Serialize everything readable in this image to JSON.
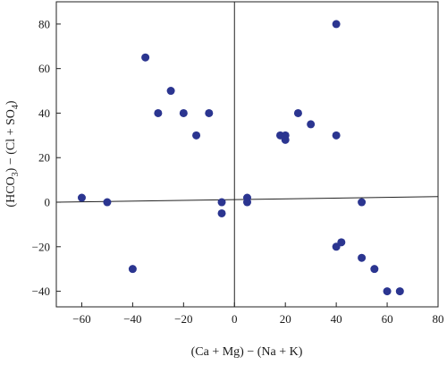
{
  "chart_data": {
    "type": "scatter",
    "xlabel": "(Ca + Mg) − (Na + K)",
    "ylabel_parts": {
      "a": "(HCO",
      "a_sub": "3",
      "b": ") − (Cl + SO",
      "b_sub": "4",
      "c": ")"
    },
    "xlim": [
      -70,
      80
    ],
    "ylim": [
      -47,
      90
    ],
    "xticks": [
      -60,
      -40,
      -20,
      0,
      20,
      40,
      60,
      80
    ],
    "yticks": [
      -40,
      -20,
      0,
      20,
      40,
      60,
      80
    ],
    "grid": false,
    "point_color": "#2b3590",
    "reference_lines": {
      "vertical_x": 0,
      "fit_line": {
        "x": [
          -70,
          80
        ],
        "y": [
          0,
          2.5
        ]
      }
    },
    "series": [
      {
        "points": [
          [
            -60,
            2
          ],
          [
            -50,
            0
          ],
          [
            -40,
            -30
          ],
          [
            -35,
            65
          ],
          [
            -30,
            40
          ],
          [
            -25,
            50
          ],
          [
            -20,
            40
          ],
          [
            -15,
            30
          ],
          [
            -10,
            40
          ],
          [
            -5,
            0
          ],
          [
            -5,
            -5
          ],
          [
            5,
            2
          ],
          [
            5,
            0
          ],
          [
            18,
            30
          ],
          [
            20,
            30
          ],
          [
            20,
            28
          ],
          [
            25,
            40
          ],
          [
            30,
            35
          ],
          [
            40,
            80
          ],
          [
            40,
            30
          ],
          [
            40,
            -20
          ],
          [
            42,
            -18
          ],
          [
            50,
            0
          ],
          [
            50,
            -25
          ],
          [
            55,
            -30
          ],
          [
            60,
            -40
          ],
          [
            65,
            -40
          ]
        ]
      }
    ]
  }
}
